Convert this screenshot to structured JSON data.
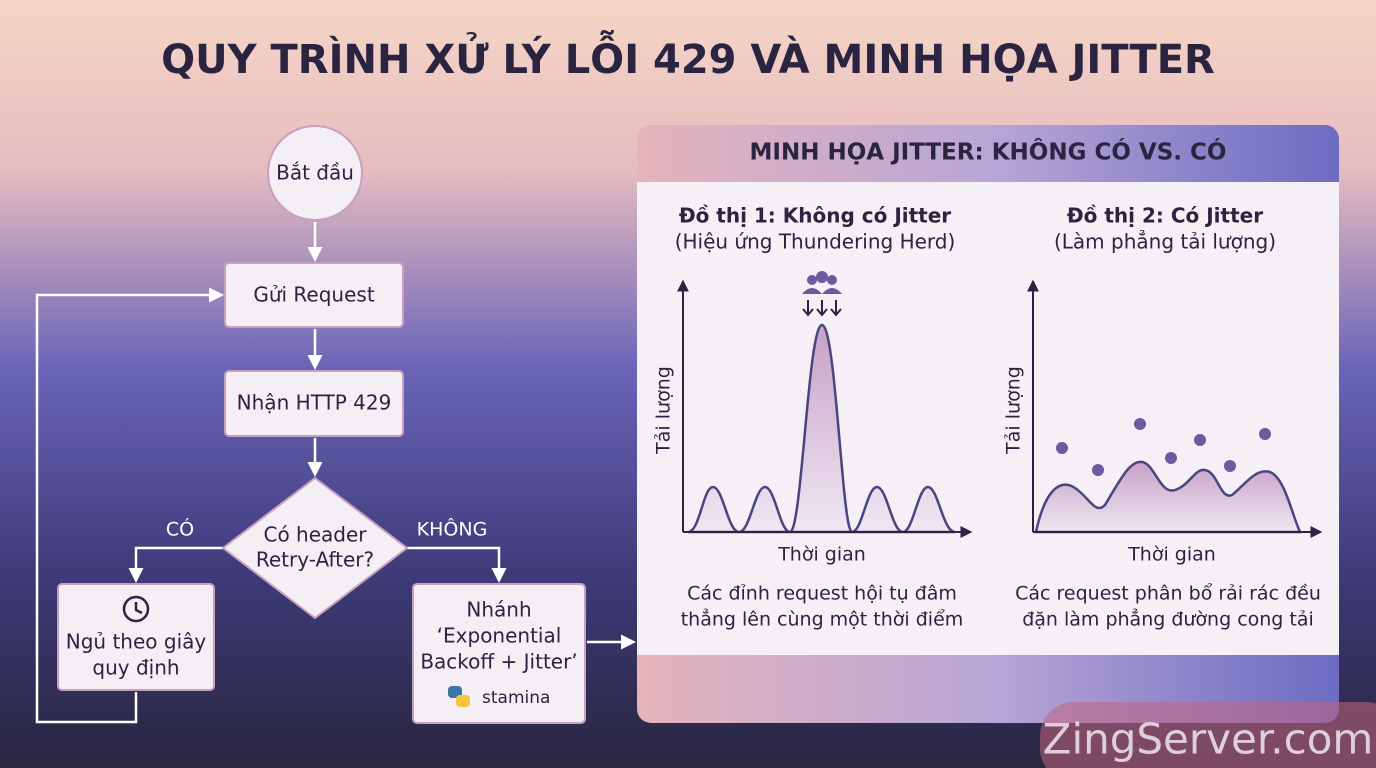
{
  "title": "QUY TRÌNH XỬ LÝ LỖI 429 VÀ MINH HỌA JITTER",
  "flow": {
    "nodes": [
      {
        "lines": [
          "Bắt đầu"
        ]
      },
      {
        "lines": [
          "Gửi Request"
        ]
      },
      {
        "lines": [
          "Nhận HTTP 429"
        ]
      },
      {
        "lines": [
          "Có header",
          "Retry-After?"
        ]
      },
      {
        "lines": [
          "Ngủ theo giây",
          "quy định"
        ]
      },
      {
        "lines": [
          "Nhánh",
          "‘Exponential",
          "Backoff + Jitter’"
        ],
        "library": "stamina"
      }
    ],
    "edge_labels": [
      "CÓ",
      "KHÔNG"
    ]
  },
  "jitter_panel": {
    "title": "MINH HỌA JITTER: KHÔNG CÓ VS. CÓ",
    "charts": [
      {
        "title": "Đồ thị 1: Không có Jitter",
        "subtitle": "(Hiệu ứng Thundering Herd)",
        "y_label": "Tải lượng",
        "x_label": "Thời gian",
        "caption": [
          "Các đỉnh request hội tụ đâm",
          "thẳng lên cùng một thời điểm"
        ]
      },
      {
        "title": "Đồ thị 2: Có Jitter",
        "subtitle": "(Làm phẳng tải lượng)",
        "y_label": "Tải lượng",
        "x_label": "Thời gian",
        "caption": [
          "Các request phân bổ rải rác đều",
          "đặn làm phẳng đường cong tải"
        ]
      }
    ]
  },
  "watermark": "ZingServer.com"
}
